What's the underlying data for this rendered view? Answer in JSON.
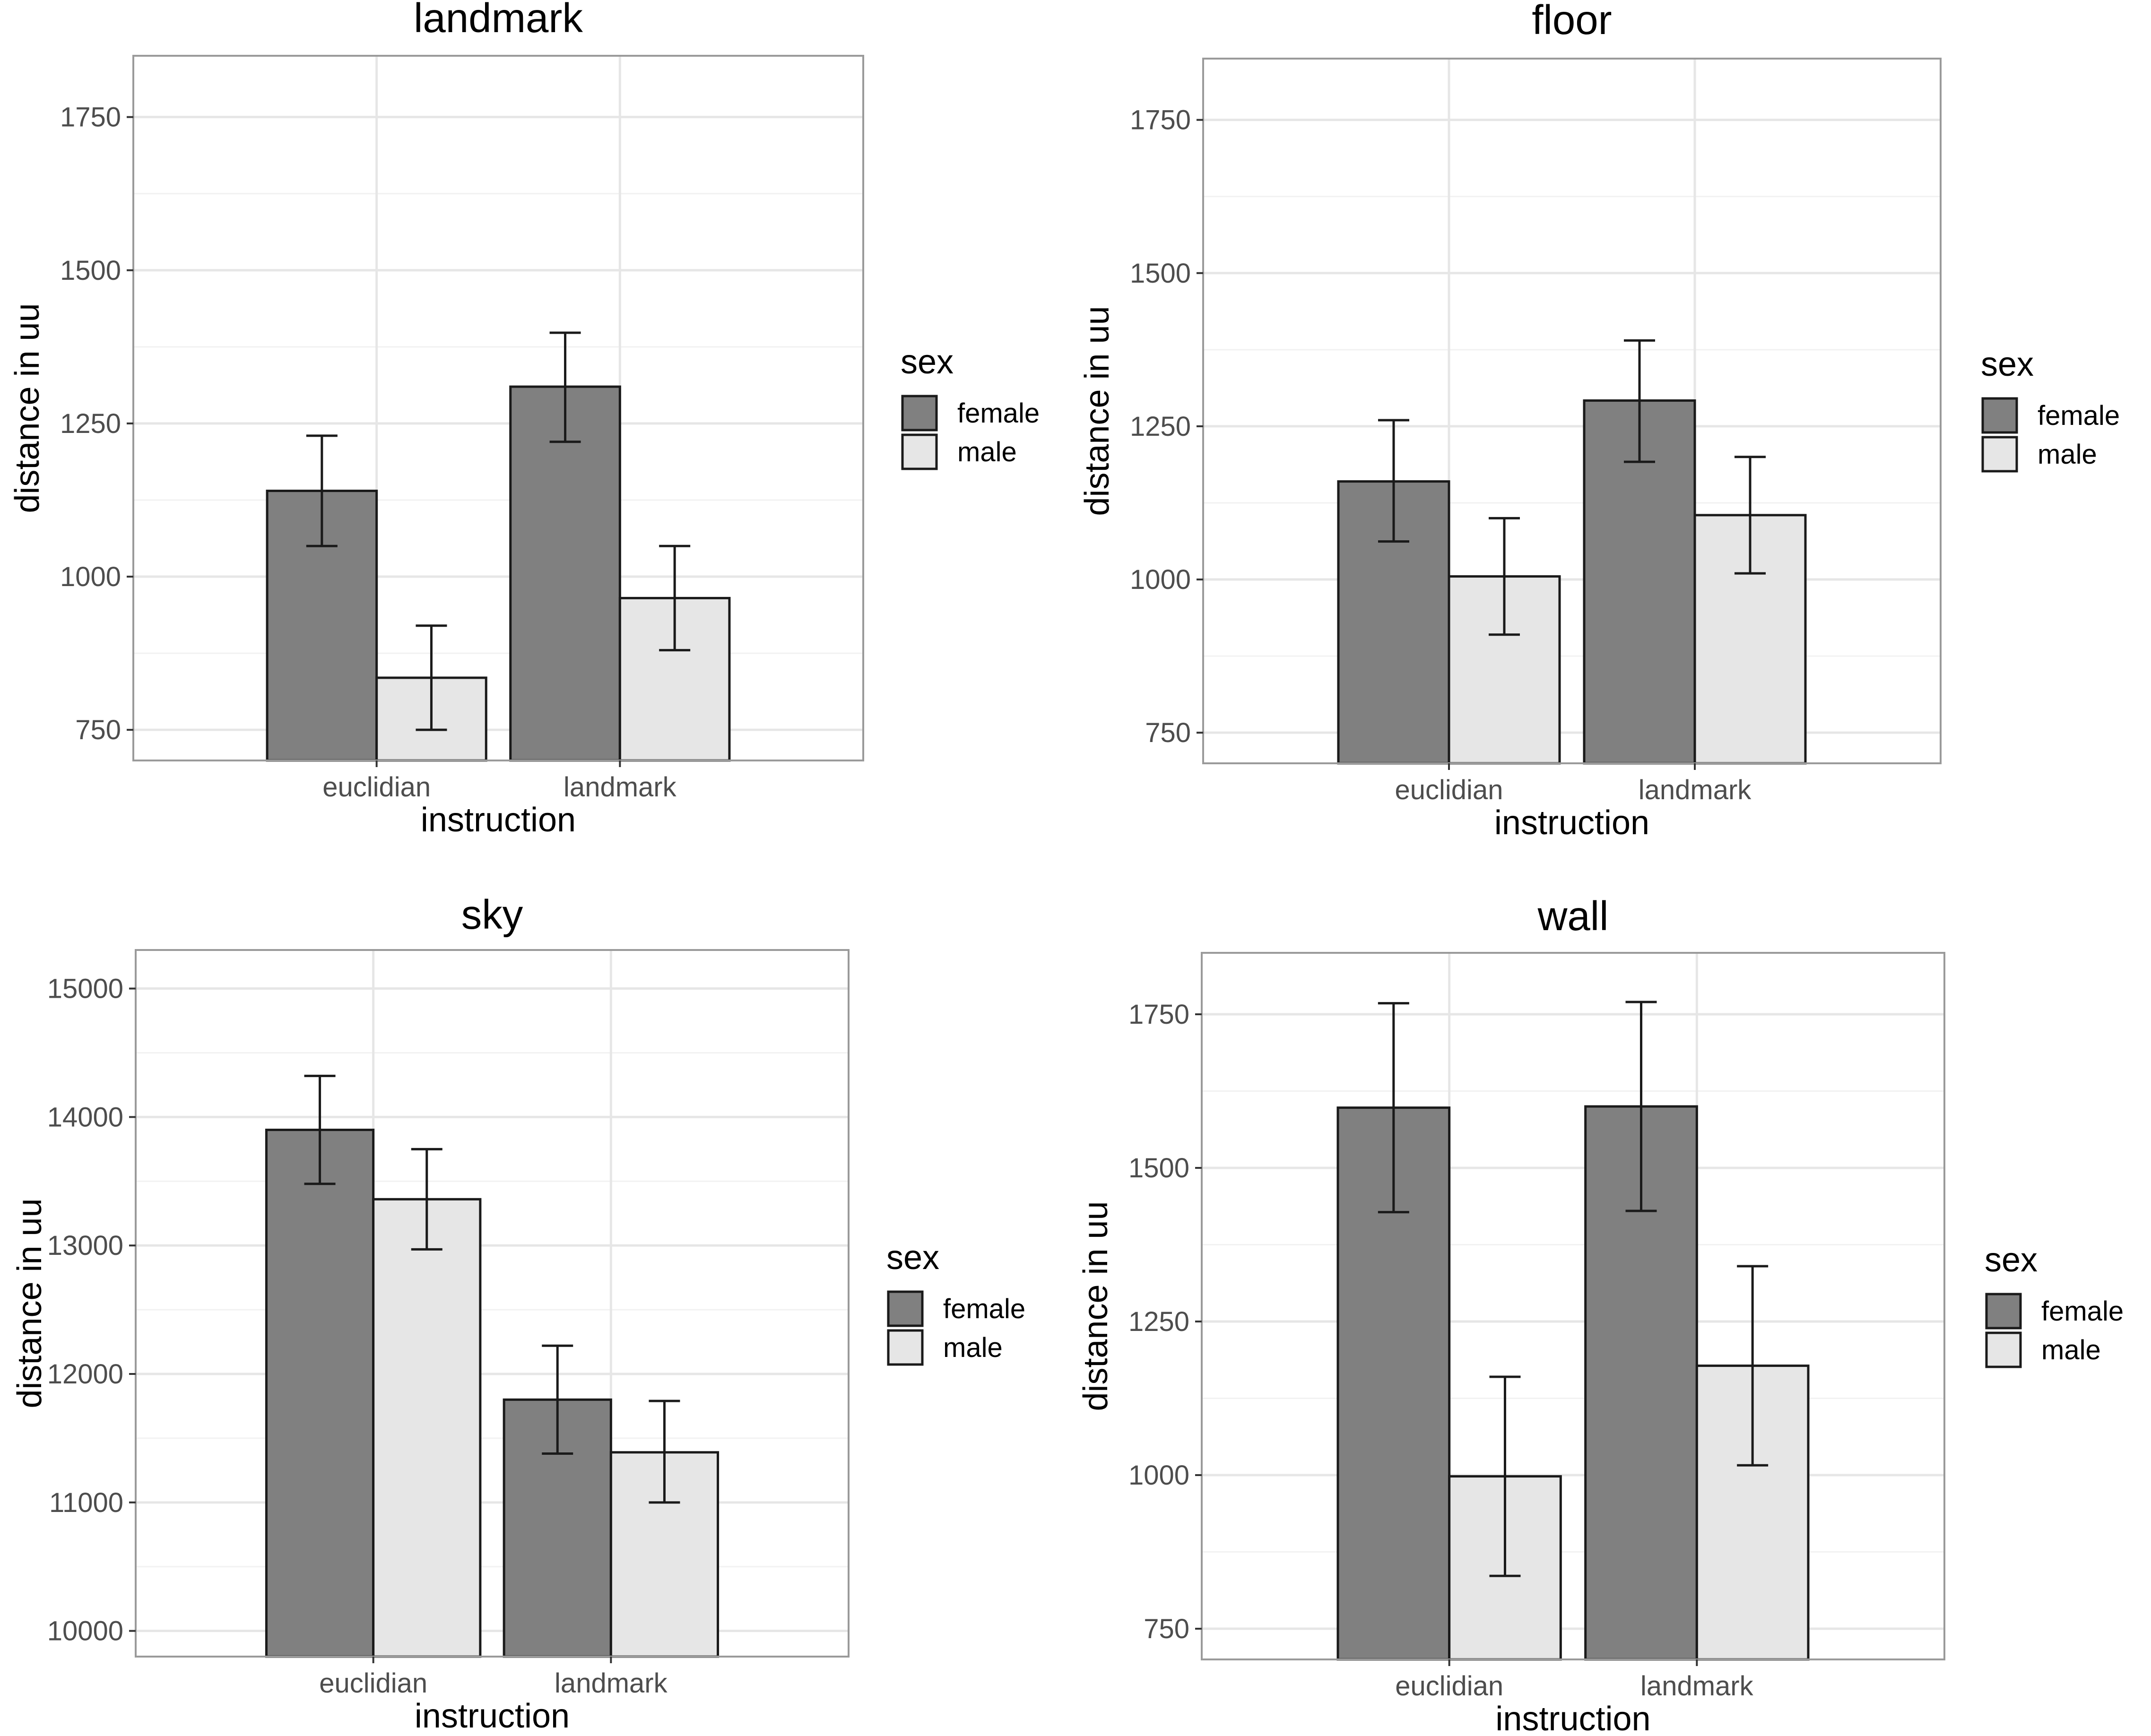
{
  "chart_data": [
    {
      "type": "bar",
      "title": "landmark",
      "xlabel": "instruction",
      "ylabel": "distance in uu",
      "ylim": [
        700,
        1850
      ],
      "yticks": [
        750,
        1000,
        1250,
        1500,
        1750
      ],
      "categories": [
        "euclidian",
        "landmark"
      ],
      "series": [
        {
          "name": "female",
          "color": "#808080",
          "values": [
            1140,
            1310
          ],
          "err_low": [
            1050,
            1220
          ],
          "err_high": [
            1230,
            1398
          ]
        },
        {
          "name": "male",
          "color": "#e6e6e6",
          "values": [
            835,
            965
          ],
          "err_low": [
            750,
            880
          ],
          "err_high": [
            920,
            1050
          ]
        }
      ],
      "legend": {
        "title": "sex",
        "position": "right"
      },
      "grid": true
    },
    {
      "type": "bar",
      "title": "floor",
      "xlabel": "instruction",
      "ylabel": "distance in uu",
      "ylim": [
        700,
        1850
      ],
      "yticks": [
        750,
        1000,
        1250,
        1500,
        1750
      ],
      "categories": [
        "euclidian",
        "landmark"
      ],
      "series": [
        {
          "name": "female",
          "color": "#808080",
          "values": [
            1160,
            1292
          ],
          "err_low": [
            1062,
            1192
          ],
          "err_high": [
            1260,
            1390
          ]
        },
        {
          "name": "male",
          "color": "#e6e6e6",
          "values": [
            1005,
            1105
          ],
          "err_low": [
            910,
            1010
          ],
          "err_high": [
            1100,
            1200
          ]
        }
      ],
      "legend": {
        "title": "sex",
        "position": "right"
      },
      "grid": true
    },
    {
      "type": "bar",
      "title": "sky",
      "xlabel": "instruction",
      "ylabel": "distance in uu",
      "ylim": [
        9800,
        15300
      ],
      "yticks": [
        10000,
        11000,
        12000,
        13000,
        14000,
        15000
      ],
      "categories": [
        "euclidian",
        "landmark"
      ],
      "series": [
        {
          "name": "female",
          "color": "#808080",
          "values": [
            13900,
            11800
          ],
          "err_low": [
            13480,
            11380
          ],
          "err_high": [
            14320,
            12220
          ]
        },
        {
          "name": "male",
          "color": "#e6e6e6",
          "values": [
            13360,
            11390
          ],
          "err_low": [
            12970,
            11000
          ],
          "err_high": [
            13750,
            11790
          ]
        }
      ],
      "legend": {
        "title": "sex",
        "position": "right"
      },
      "grid": true
    },
    {
      "type": "bar",
      "title": "wall",
      "xlabel": "instruction",
      "ylabel": "distance in uu",
      "ylim": [
        700,
        1850
      ],
      "yticks": [
        750,
        1000,
        1250,
        1500,
        1750
      ],
      "categories": [
        "euclidian",
        "landmark"
      ],
      "series": [
        {
          "name": "female",
          "color": "#808080",
          "values": [
            1598,
            1600
          ],
          "err_low": [
            1428,
            1430
          ],
          "err_high": [
            1768,
            1770
          ]
        },
        {
          "name": "male",
          "color": "#e6e6e6",
          "values": [
            998,
            1178
          ],
          "err_low": [
            836,
            1016
          ],
          "err_high": [
            1160,
            1340
          ]
        }
      ],
      "legend": {
        "title": "sex",
        "position": "right"
      },
      "grid": true
    }
  ]
}
